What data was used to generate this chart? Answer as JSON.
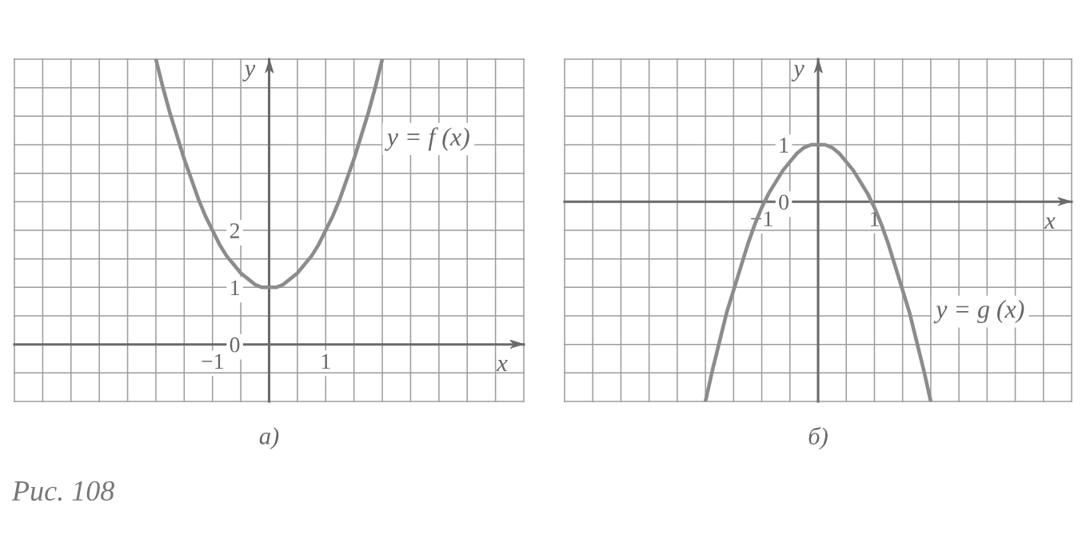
{
  "chart_data": [
    {
      "type": "line",
      "title": "а)",
      "xlabel": "x",
      "ylabel": "y",
      "x": [
        -2,
        -1.875,
        -1.75,
        -1.625,
        -1.5,
        -1.375,
        -1.25,
        -1.125,
        -1,
        -0.875,
        -0.75,
        -0.625,
        -0.5,
        -0.375,
        -0.25,
        -0.125,
        0,
        0.125,
        0.25,
        0.375,
        0.5,
        0.625,
        0.75,
        0.875,
        1,
        1.125,
        1.25,
        1.375,
        1.5,
        1.625,
        1.75,
        1.875,
        2
      ],
      "series": [
        {
          "name": "y = f (x)",
          "color": "#8c8c8c",
          "values": [
            5,
            4.5,
            4.05,
            3.65,
            3.25,
            2.9,
            2.55,
            2.25,
            2,
            1.75,
            1.55,
            1.4,
            1.25,
            1.15,
            1.05,
            1,
            1,
            1,
            1.05,
            1.15,
            1.25,
            1.4,
            1.55,
            1.75,
            2,
            2.25,
            2.55,
            2.9,
            3.25,
            3.65,
            4.05,
            4.5,
            5
          ]
        }
      ],
      "xlim": [
        -4.5,
        4.5
      ],
      "ylim": [
        -1,
        5
      ],
      "xticks": [
        {
          "value": -4.5,
          "label": null
        },
        {
          "value": -4,
          "label": null
        },
        {
          "value": -3.5,
          "label": null
        },
        {
          "value": -3,
          "label": null
        },
        {
          "value": -2.5,
          "label": null
        },
        {
          "value": -2,
          "label": null
        },
        {
          "value": -1.5,
          "label": null
        },
        {
          "value": -1,
          "label": "−1"
        },
        {
          "value": -0.5,
          "label": null
        },
        {
          "value": 0,
          "label": null
        },
        {
          "value": 0.5,
          "label": null
        },
        1,
        {
          "value": 1.5,
          "label": null
        },
        {
          "value": 2,
          "label": null
        },
        {
          "value": 2.5,
          "label": null
        },
        {
          "value": 3,
          "label": null
        },
        {
          "value": 3.5,
          "label": null
        },
        {
          "value": 4,
          "label": null
        },
        {
          "value": 4.5,
          "label": null
        }
      ],
      "yticks": [
        {
          "value": -1,
          "label": null
        },
        {
          "value": -0.5,
          "label": null
        },
        0,
        {
          "value": 0.5,
          "label": null
        },
        1,
        {
          "value": 1.5,
          "label": null
        },
        2,
        {
          "value": 2.5,
          "label": null
        },
        {
          "value": 3,
          "label": null
        },
        {
          "value": 3.5,
          "label": null
        },
        {
          "value": 4,
          "label": null
        },
        {
          "value": 4.5,
          "label": null
        },
        {
          "value": 5,
          "label": null
        }
      ],
      "grid": true,
      "annotations": [
        "Рис. 108"
      ]
    },
    {
      "type": "line",
      "title": "б)",
      "xlabel": "x",
      "ylabel": "y",
      "x": [
        -2,
        -1.875,
        -1.75,
        -1.625,
        -1.5,
        -1.375,
        -1.25,
        -1.125,
        -1,
        -0.875,
        -0.75,
        -0.625,
        -0.5,
        -0.375,
        -0.25,
        -0.125,
        0,
        0.125,
        0.25,
        0.375,
        0.5,
        0.625,
        0.75,
        0.875,
        1,
        1.125,
        1.25,
        1.375,
        1.5,
        1.625,
        1.75,
        1.875,
        2
      ],
      "series": [
        {
          "name": "y = g (x)",
          "color": "#8c8c8c",
          "values": [
            -3.5,
            -2.95,
            -2.45,
            -1.95,
            -1.55,
            -1.15,
            -0.75,
            -0.4,
            -0.1,
            0.15,
            0.35,
            0.55,
            0.7,
            0.85,
            0.95,
            1,
            1,
            1,
            0.95,
            0.85,
            0.7,
            0.55,
            0.35,
            0.15,
            -0.1,
            -0.4,
            -0.75,
            -1.15,
            -1.55,
            -1.95,
            -2.45,
            -2.95,
            -3.5
          ]
        }
      ],
      "xlim": [
        -4.5,
        4.5
      ],
      "ylim": [
        -3.5,
        2.5
      ],
      "xticks": [
        {
          "value": -4.5,
          "label": null
        },
        {
          "value": -4,
          "label": null
        },
        {
          "value": -3.5,
          "label": null
        },
        {
          "value": -3,
          "label": null
        },
        {
          "value": -2.5,
          "label": null
        },
        {
          "value": -2,
          "label": null
        },
        {
          "value": -1.5,
          "label": null
        },
        {
          "value": -1,
          "label": "−1"
        },
        {
          "value": -0.5,
          "label": null
        },
        {
          "value": 0,
          "label": null
        },
        {
          "value": 0.5,
          "label": null
        },
        1,
        {
          "value": 1.5,
          "label": null
        },
        {
          "value": 2,
          "label": null
        },
        {
          "value": 2.5,
          "label": null
        },
        {
          "value": 3,
          "label": null
        },
        {
          "value": 3.5,
          "label": null
        },
        {
          "value": 4,
          "label": null
        },
        {
          "value": 4.5,
          "label": null
        }
      ],
      "yticks": [
        {
          "value": -3.5,
          "label": null
        },
        {
          "value": -3,
          "label": null
        },
        {
          "value": -2.5,
          "label": null
        },
        {
          "value": -2,
          "label": null
        },
        {
          "value": -1.5,
          "label": null
        },
        {
          "value": -1,
          "label": null
        },
        {
          "value": -0.5,
          "label": null
        },
        0,
        {
          "value": 0.5,
          "label": null
        },
        1,
        {
          "value": 1.5,
          "label": null
        },
        {
          "value": 2,
          "label": null
        },
        {
          "value": 2.5,
          "label": null
        }
      ],
      "grid": true
    }
  ]
}
